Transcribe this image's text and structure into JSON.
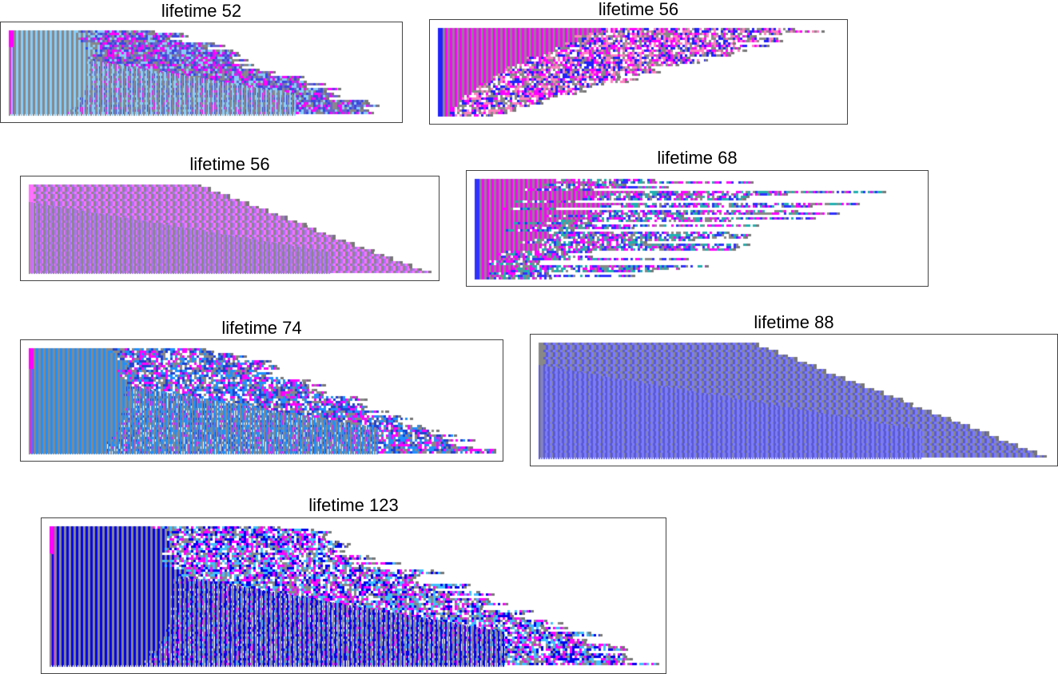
{
  "figure": {
    "panels": [
      {
        "title": "lifetime 52",
        "palette": [
          "#888888",
          "#87cefa",
          "#ff00ff",
          "#3b47e0",
          "#6666cc"
        ],
        "shape": "branchy",
        "seed": 11
      },
      {
        "title": "lifetime 56",
        "palette": [
          "#888888",
          "#ff00ff",
          "#2020ff",
          "#ff80c0",
          "#ffffff"
        ],
        "shape": "checker",
        "seed": 23
      },
      {
        "title": "lifetime 56",
        "palette": [
          "#888888",
          "#b070ff",
          "#ff70ff",
          "#6495ed",
          "#9999ff"
        ],
        "shape": "staircase",
        "seed": 37
      },
      {
        "title": "lifetime 68",
        "palette": [
          "#888888",
          "#ff00ff",
          "#3030ff",
          "#20b0b0",
          "#ffffff"
        ],
        "shape": "sparse",
        "seed": 41
      },
      {
        "title": "lifetime 74",
        "palette": [
          "#888888",
          "#1e90ff",
          "#ff00ff",
          "#2040d0",
          "#ffffff"
        ],
        "shape": "branchy",
        "seed": 53
      },
      {
        "title": "lifetime 88",
        "palette": [
          "#5a5ad8",
          "#7b7bff",
          "#888888",
          "#6a9fe0",
          "#8a6adf"
        ],
        "shape": "staircase",
        "seed": 67
      },
      {
        "title": "lifetime 123",
        "palette": [
          "#888888",
          "#0000ee",
          "#ff00ff",
          "#40c0ff",
          "#ffffff"
        ],
        "shape": "branchy",
        "seed": 79
      }
    ]
  }
}
